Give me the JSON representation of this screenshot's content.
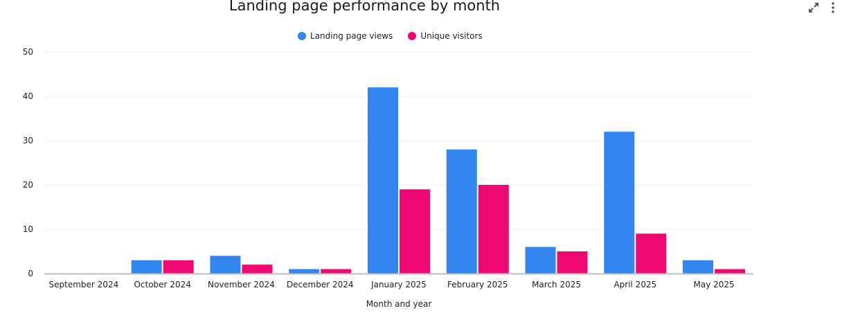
{
  "chart_data": {
    "type": "bar",
    "title": "Landing page performance by month",
    "xlabel": "Month and year",
    "ylabel": "",
    "ylim": [
      0,
      50
    ],
    "yticks": [
      0,
      10,
      20,
      30,
      40,
      50
    ],
    "categories": [
      "September 2024",
      "October 2024",
      "November 2024",
      "December 2024",
      "January 2025",
      "February 2025",
      "March 2025",
      "April 2025",
      "May 2025"
    ],
    "series": [
      {
        "name": "Landing page views",
        "color": "#3385F0",
        "values": [
          0,
          3,
          4,
          1,
          42,
          28,
          6,
          32,
          3
        ]
      },
      {
        "name": "Unique visitors",
        "color": "#EE0872",
        "values": [
          0,
          3,
          2,
          1,
          19,
          20,
          5,
          9,
          1
        ]
      }
    ],
    "grid": true,
    "legend_position": "top-center"
  },
  "icons": {
    "expand": "expand-icon",
    "menu": "more-vertical-icon"
  }
}
